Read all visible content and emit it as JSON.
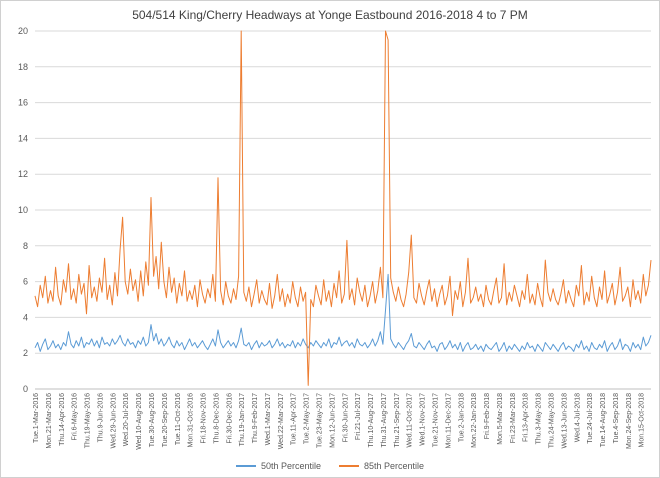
{
  "colors": {
    "series_50th": "#5B9BD5",
    "series_85th": "#ED7D31",
    "grid": "#D9D9D9",
    "axis": "#BFBFBF",
    "text": "#595959",
    "title": "#404040"
  },
  "chart_data": {
    "type": "line",
    "title": "504/514 King/Cherry Headways at Yonge Eastbound 2016-2018 4 to 7 PM",
    "xlabel": "",
    "ylabel": "",
    "ylim": [
      0,
      20
    ],
    "ytick_step": 2,
    "grid": true,
    "legend_position": "bottom",
    "x_tick_labels": [
      "Tue.1-Mar-2016",
      "Mon.21-Mar-2016",
      "Thu.14-Apr-2016",
      "Fri.6-May-2016",
      "Thu.19-May-2016",
      "Thu.9-Jun-2016",
      "Wed.29-Jun-2016",
      "Wed.20-Jul-2016",
      "Wed.10-Aug-2016",
      "Tue.30-Aug-2016",
      "Tue.20-Sep-2016",
      "Tue.11-Oct-2016",
      "Mon.31-Oct-2016",
      "Fri.18-Nov-2016",
      "Thu.8-Dec-2016",
      "Fri.30-Dec-2016",
      "Thu.19-Jan-2017",
      "Thu.9-Feb-2017",
      "Wed.1-Mar-2017",
      "Wed.22-Mar-2017",
      "Tue.11-Apr-2017",
      "Tue.2-May-2017",
      "Tue.23-May-2017",
      "Mon.12-Jun-2017",
      "Fri.30-Jun-2017",
      "Fri.21-Jul-2017",
      "Thu.10-Aug-2017",
      "Thu.31-Aug-2017",
      "Thu.21-Sep-2017",
      "Wed.11-Oct-2017",
      "Wed.1-Nov-2017",
      "Tue.21-Nov-2017",
      "Mon.11-Dec-2017",
      "Tue.2-Jan-2018",
      "Mon.22-Jan-2018",
      "Fri.9-Feb-2018",
      "Mon.5-Mar-2018",
      "Fri.23-Mar-2018",
      "Fri.13-Apr-2018",
      "Thu.3-May-2018",
      "Thu.24-May-2018",
      "Wed.13-Jun-2018",
      "Wed.4-Jul-2018",
      "Tue.24-Jul-2018",
      "Tue.14-Aug-2018",
      "Tue.4-Sep-2018",
      "Mon.24-Sep-2018",
      "Mon.15-Oct-2018"
    ],
    "series": [
      {
        "name": "50th Percentile",
        "color": "#5B9BD5",
        "values": [
          2.3,
          2.6,
          2.1,
          2.5,
          2.8,
          2.2,
          2.4,
          2.7,
          2.3,
          2.5,
          2.2,
          2.6,
          2.4,
          3.2,
          2.5,
          2.3,
          2.7,
          2.4,
          2.9,
          2.3,
          2.6,
          2.5,
          2.8,
          2.4,
          2.7,
          2.3,
          2.9,
          2.5,
          2.6,
          2.4,
          2.8,
          2.5,
          2.7,
          3.0,
          2.6,
          2.4,
          2.8,
          2.5,
          2.6,
          2.3,
          2.7,
          2.5,
          2.9,
          2.4,
          2.6,
          3.6,
          2.7,
          3.1,
          2.5,
          2.8,
          2.4,
          2.6,
          2.9,
          2.5,
          2.3,
          2.7,
          2.4,
          2.6,
          2.2,
          2.5,
          2.8,
          2.4,
          2.6,
          2.3,
          2.5,
          2.7,
          2.4,
          2.2,
          2.5,
          2.8,
          2.4,
          3.3,
          2.6,
          2.3,
          2.5,
          2.7,
          2.4,
          2.6,
          2.3,
          2.7,
          3.4,
          2.5,
          2.4,
          2.6,
          2.2,
          2.5,
          2.7,
          2.3,
          2.6,
          2.4,
          2.5,
          2.7,
          2.3,
          2.5,
          2.8,
          2.4,
          2.6,
          2.3,
          2.5,
          2.4,
          2.7,
          2.3,
          2.6,
          2.4,
          2.8,
          2.5,
          2.3,
          2.6,
          2.4,
          2.7,
          2.5,
          2.3,
          2.6,
          2.4,
          2.8,
          2.3,
          2.6,
          2.5,
          2.9,
          2.4,
          2.6,
          2.7,
          2.4,
          2.6,
          2.3,
          2.8,
          2.5,
          2.4,
          2.6,
          2.3,
          2.5,
          2.8,
          2.4,
          2.7,
          3.2,
          2.5,
          4.4,
          6.4,
          2.8,
          2.5,
          2.3,
          2.6,
          2.4,
          2.2,
          2.5,
          2.7,
          3.1,
          2.4,
          2.3,
          2.6,
          2.4,
          2.2,
          2.5,
          2.7,
          2.3,
          2.4,
          2.1,
          2.5,
          2.6,
          2.2,
          2.4,
          2.7,
          2.3,
          2.5,
          2.2,
          2.6,
          2.1,
          2.4,
          2.6,
          2.2,
          2.3,
          2.5,
          2.2,
          2.4,
          2.1,
          2.5,
          2.3,
          2.2,
          2.4,
          2.6,
          2.1,
          2.3,
          2.6,
          2.1,
          2.4,
          2.2,
          2.5,
          2.3,
          2.1,
          2.4,
          2.2,
          2.6,
          2.3,
          2.4,
          2.1,
          2.5,
          2.3,
          2.1,
          2.6,
          2.4,
          2.2,
          2.5,
          2.3,
          2.1,
          2.4,
          2.6,
          2.2,
          2.4,
          2.3,
          2.1,
          2.5,
          2.3,
          2.7,
          2.2,
          2.4,
          2.1,
          2.6,
          2.3,
          2.2,
          2.5,
          2.3,
          2.7,
          2.1,
          2.4,
          2.6,
          2.2,
          2.4,
          2.8,
          2.2,
          2.5,
          2.4,
          2.1,
          2.6,
          2.3,
          2.5,
          2.2,
          2.9,
          2.4,
          2.6,
          3.0
        ]
      },
      {
        "name": "85th Percentile",
        "color": "#ED7D31",
        "values": [
          5.2,
          4.6,
          5.8,
          5.1,
          6.3,
          4.8,
          5.5,
          4.9,
          6.8,
          5.2,
          4.7,
          6.1,
          5.4,
          7.0,
          5.0,
          5.6,
          4.8,
          6.4,
          5.3,
          5.9,
          4.2,
          6.9,
          5.1,
          5.7,
          4.9,
          6.2,
          5.4,
          7.3,
          5.0,
          5.8,
          4.7,
          6.5,
          5.2,
          7.8,
          9.6,
          6.0,
          5.3,
          6.7,
          5.5,
          6.1,
          4.9,
          6.6,
          5.2,
          7.1,
          5.8,
          10.7,
          6.3,
          7.4,
          5.6,
          8.2,
          6.0,
          5.1,
          6.8,
          5.4,
          6.2,
          4.8,
          5.9,
          5.2,
          6.6,
          4.9,
          5.5,
          5.0,
          5.8,
          4.6,
          6.1,
          5.3,
          4.8,
          5.6,
          5.1,
          6.4,
          4.9,
          11.8,
          5.5,
          4.7,
          6.0,
          5.2,
          4.8,
          5.6,
          5.0,
          6.3,
          20.0,
          5.4,
          4.9,
          5.7,
          4.6,
          5.3,
          6.1,
          4.8,
          5.5,
          5.0,
          4.7,
          5.9,
          4.5,
          5.2,
          6.4,
          4.9,
          5.6,
          4.6,
          5.3,
          4.8,
          6.0,
          5.1,
          4.6,
          5.7,
          4.9,
          5.4,
          0.2,
          5.0,
          4.6,
          5.8,
          5.2,
          4.7,
          6.1,
          4.9,
          5.5,
          4.6,
          5.9,
          5.1,
          6.6,
          4.8,
          5.3,
          8.3,
          5.0,
          5.6,
          4.7,
          6.2,
          5.4,
          4.9,
          5.8,
          4.6,
          5.2,
          6.0,
          4.8,
          5.5,
          6.8,
          5.1,
          20.0,
          19.5,
          6.2,
          5.4,
          4.9,
          5.7,
          5.0,
          4.6,
          5.3,
          6.5,
          8.6,
          5.1,
          4.8,
          5.9,
          5.2,
          4.7,
          5.5,
          6.1,
          4.9,
          5.6,
          4.6,
          5.3,
          5.8,
          4.7,
          5.2,
          6.3,
          4.1,
          5.5,
          5.0,
          6.0,
          4.6,
          5.4,
          7.3,
          4.8,
          5.1,
          5.7,
          4.9,
          5.3,
          4.6,
          5.8,
          5.0,
          4.7,
          5.5,
          6.2,
          4.8,
          5.1,
          7.0,
          4.7,
          5.4,
          4.9,
          5.8,
          5.2,
          4.6,
          5.5,
          5.0,
          6.4,
          4.8,
          5.3,
          4.7,
          5.9,
          5.1,
          4.6,
          7.2,
          5.4,
          4.9,
          5.6,
          5.0,
          4.7,
          5.3,
          6.1,
          4.8,
          5.5,
          5.0,
          4.6,
          5.8,
          5.2,
          6.9,
          4.7,
          5.4,
          4.9,
          6.3,
          5.1,
          4.6,
          5.7,
          5.0,
          6.6,
          4.8,
          5.3,
          5.9,
          4.7,
          5.4,
          6.8,
          4.9,
          5.2,
          5.7,
          4.6,
          6.1,
          5.0,
          5.5,
          4.8,
          6.4,
          5.2,
          5.8,
          7.2
        ]
      }
    ]
  }
}
